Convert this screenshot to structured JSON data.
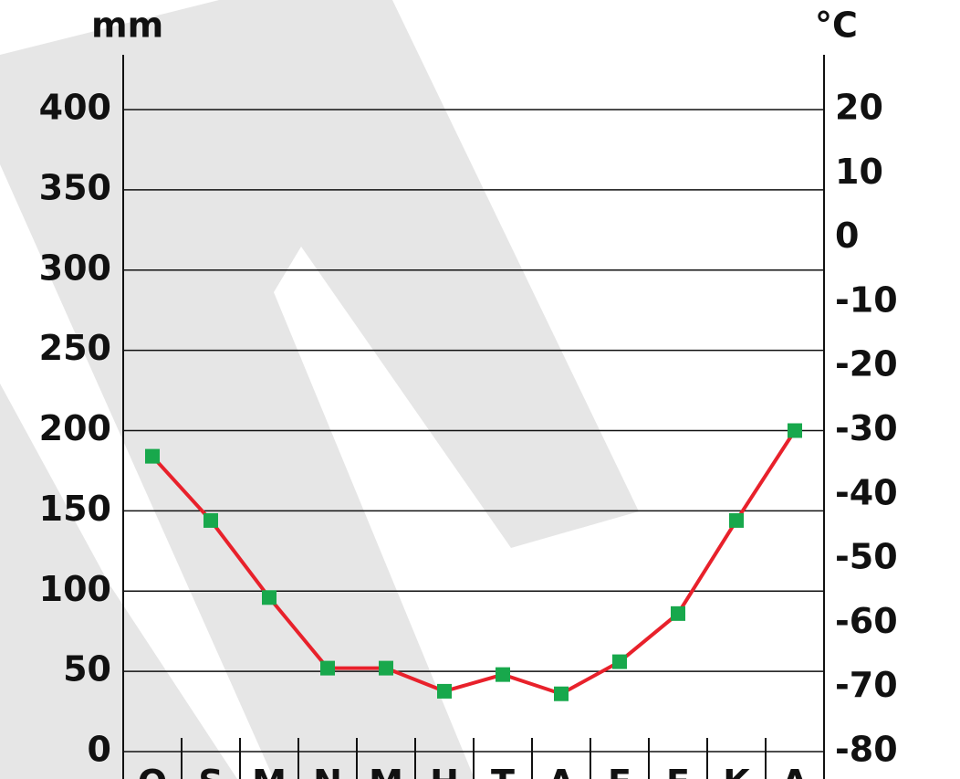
{
  "chart_data": {
    "type": "line",
    "ylabel": "mm",
    "y2label": "°C",
    "categories": [
      "O",
      "S",
      "M",
      "N",
      "M",
      "H",
      "T",
      "A",
      "E",
      "E",
      "K",
      "A"
    ],
    "series": [
      {
        "color": "#e8212b",
        "marker_color": "#18a84c",
        "axis": "y2",
        "values": [
          -34,
          -44,
          -56,
          -67,
          -67,
          -70.6,
          -68,
          -71,
          -66,
          -58.5,
          -44,
          -30
        ]
      }
    ],
    "ylim": [
      0,
      400
    ],
    "yticks": [
      0,
      50,
      100,
      150,
      200,
      250,
      300,
      350,
      400
    ],
    "y2lim": [
      -80,
      20
    ],
    "y2ticks": [
      -80,
      -70,
      -60,
      -50,
      -40,
      -30,
      -20,
      -10,
      0,
      10,
      20
    ],
    "grid": true
  }
}
